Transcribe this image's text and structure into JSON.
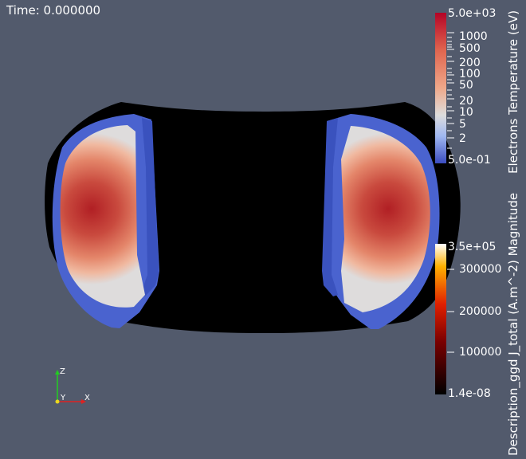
{
  "time_label": "Time: 0.000000",
  "colorbar_temperature": {
    "title": "Electrons Temperature (eV)",
    "ticks": [
      "5.0e+03",
      "1000",
      "500",
      "200",
      "100",
      "50",
      "20",
      "10",
      "5",
      "2",
      "5.0e-01"
    ],
    "scale": "log",
    "colors": [
      "#3b4cc0",
      "#dddddd",
      "#b40426"
    ]
  },
  "colorbar_current": {
    "title": "Description_ggd J_total (A.m^-2) Magnitude",
    "ticks": [
      "3.5e+05",
      "300000",
      "200000",
      "100000",
      "1.4e-08"
    ],
    "scale": "linear",
    "colors": [
      "#000000",
      "#e02000",
      "#ffb000",
      "#ffffff"
    ]
  },
  "axes_triad": {
    "z": "Z",
    "y": "Y",
    "x": "X"
  },
  "colors": {
    "background": "#525a6c",
    "vessel": "#000000"
  }
}
